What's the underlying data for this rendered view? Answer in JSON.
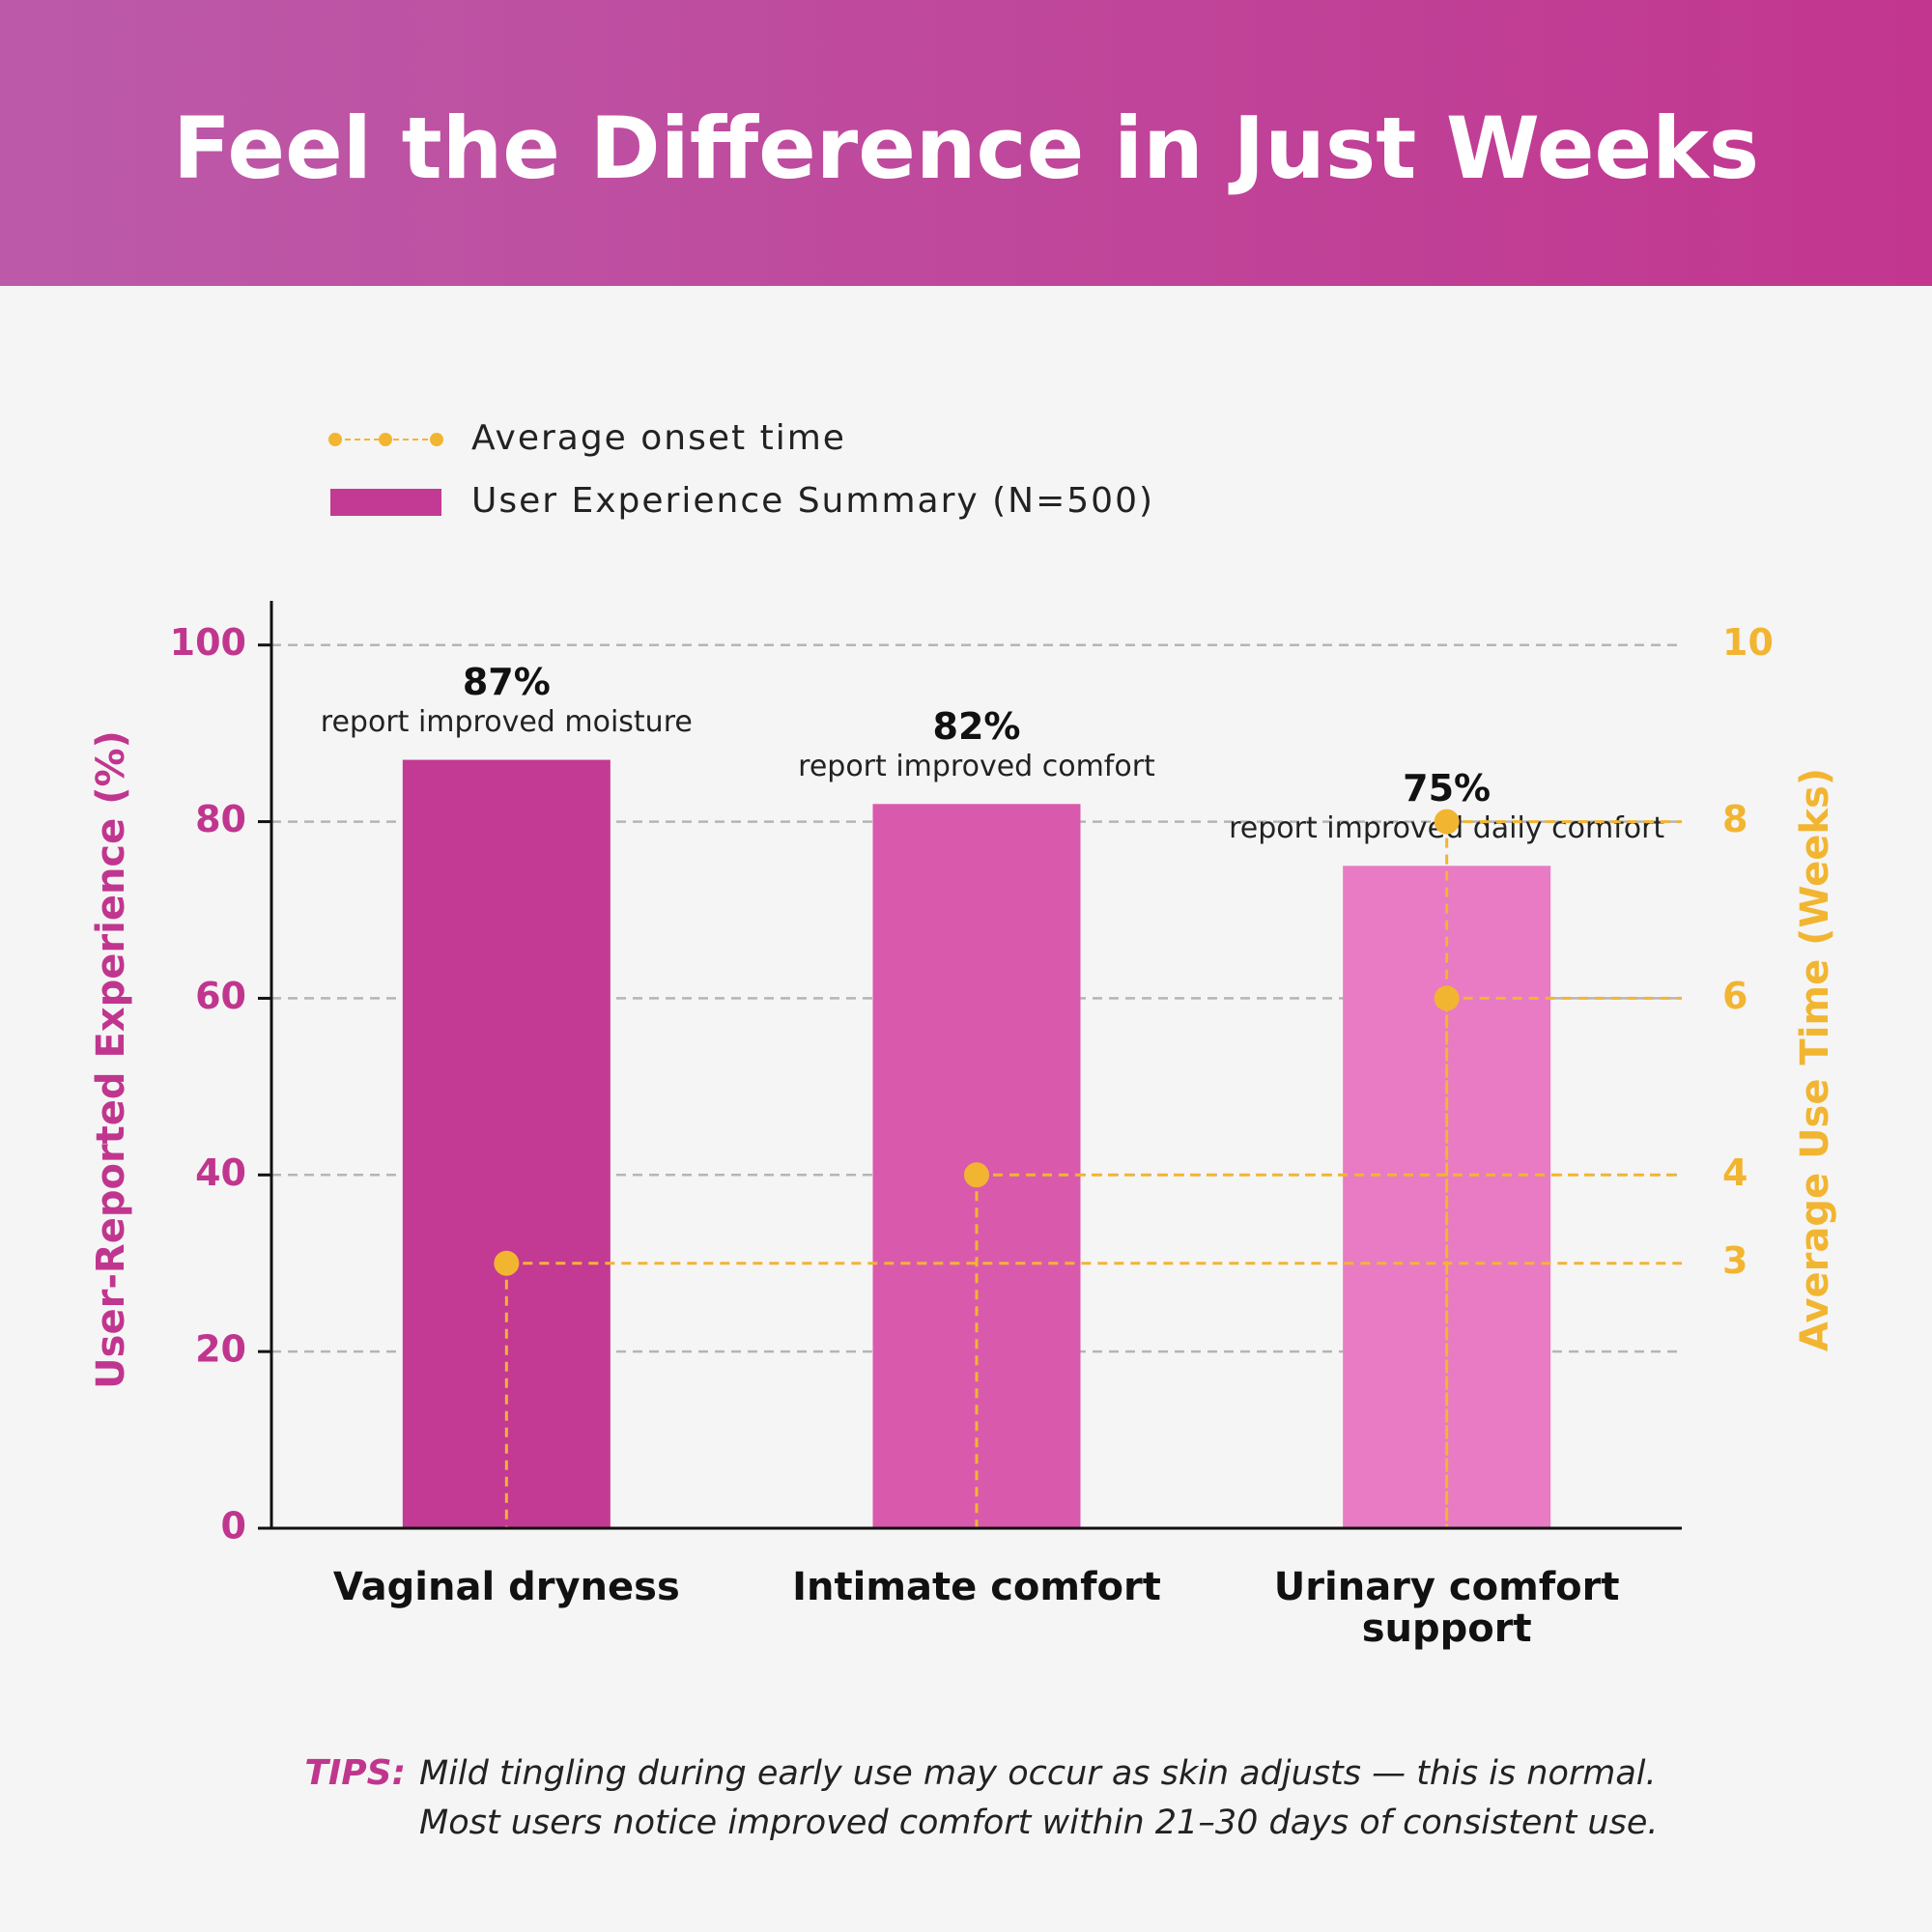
{
  "chart_data": {
    "type": "bar",
    "title": "Feel the Difference in Just Weeks",
    "categories": [
      "Vaginal dryness",
      "Intimate comfort",
      "Urinary comfort support"
    ],
    "series": [
      {
        "name": "User Experience Summary (N=500)",
        "type": "bar",
        "colors": [
          "#c23a93",
          "#d95aad",
          "#e87bc4"
        ],
        "values": [
          87,
          82,
          75
        ],
        "value_labels": [
          "87%",
          "82%",
          "75%"
        ],
        "notes": [
          "report improved moisture",
          "report improved comfort",
          "report improved daily comfort"
        ]
      },
      {
        "name": "Average onset time",
        "type": "dot",
        "axis": "y2",
        "color": "#f2b531",
        "values": [
          3,
          4,
          6
        ],
        "values_max": [
          null,
          null,
          8
        ]
      }
    ],
    "ylabel": "User-Reported Experience  (%)",
    "y2label": "Average Use Time (Weeks)",
    "ylim": [
      0,
      105
    ],
    "yticks": [
      0,
      20,
      40,
      60,
      80,
      100
    ],
    "y2lim": [
      0,
      10.5
    ],
    "y2ticks": [
      3,
      4,
      6,
      8,
      10
    ],
    "grid": true,
    "tips": {
      "label": "TIPS:",
      "lines": [
        "Mild tingling during early use may occur as skin adjusts — this is normal.",
        "Most users notice improved comfort within 21–30 days of consistent use."
      ]
    }
  }
}
